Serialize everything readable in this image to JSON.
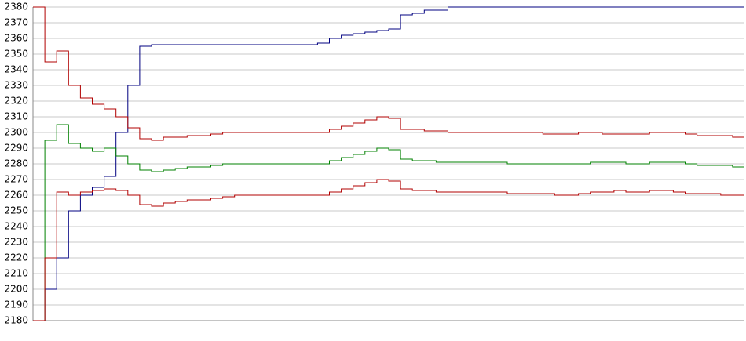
{
  "chart_data": {
    "type": "line",
    "categories": [
      null,
      null,
      null,
      null,
      null,
      null,
      null,
      null,
      null,
      null,
      null,
      null,
      null,
      null,
      null,
      null,
      null,
      null,
      null,
      null,
      null,
      null,
      null,
      null,
      null,
      null,
      null,
      null,
      null,
      null,
      null,
      null,
      null,
      null,
      null,
      null,
      null,
      null,
      null,
      null,
      null,
      null,
      null,
      null,
      null,
      null,
      null,
      null,
      null,
      null,
      null,
      null,
      null,
      null,
      null,
      null,
      null,
      null,
      null,
      null,
      null
    ],
    "ylim": [
      2180,
      2380
    ],
    "yticks": [
      2180,
      2190,
      2200,
      2210,
      2220,
      2230,
      2240,
      2250,
      2260,
      2270,
      2280,
      2290,
      2300,
      2310,
      2320,
      2330,
      2340,
      2350,
      2360,
      2370,
      2380
    ],
    "grid": true,
    "series": [
      {
        "color": "#000080",
        "values": [
          2180,
          2200,
          2220,
          2250,
          2260,
          2265,
          2272,
          2300,
          2330,
          2355,
          2356,
          2356,
          2356,
          2356,
          2356,
          2356,
          2356,
          2356,
          2356,
          2356,
          2356,
          2356,
          2356,
          2356,
          2357,
          2360,
          2362,
          2363,
          2364,
          2365,
          2366,
          2375,
          2376,
          2378,
          2378,
          2380,
          2380,
          2380,
          2380,
          2380,
          2380,
          2380,
          2380,
          2380,
          2380,
          2380,
          2380,
          2380,
          2380,
          2380,
          2380,
          2380,
          2380,
          2380,
          2380,
          2380,
          2380,
          2380,
          2380,
          2380,
          2380
        ]
      },
      {
        "color": "#b00000",
        "values": [
          2380,
          2345,
          2352,
          2330,
          2322,
          2318,
          2315,
          2310,
          2303,
          2296,
          2295,
          2297,
          2297,
          2298,
          2298,
          2299,
          2300,
          2300,
          2300,
          2300,
          2300,
          2300,
          2300,
          2300,
          2300,
          2302,
          2304,
          2306,
          2308,
          2310,
          2309,
          2302,
          2302,
          2301,
          2301,
          2300,
          2300,
          2300,
          2300,
          2300,
          2300,
          2300,
          2300,
          2299,
          2299,
          2299,
          2300,
          2300,
          2299,
          2299,
          2299,
          2299,
          2300,
          2300,
          2300,
          2299,
          2298,
          2298,
          2298,
          2297,
          2297
        ]
      },
      {
        "color": "#008000",
        "values": [
          2180,
          2295,
          2305,
          2293,
          2290,
          2288,
          2290,
          2285,
          2280,
          2276,
          2275,
          2276,
          2277,
          2278,
          2278,
          2279,
          2280,
          2280,
          2280,
          2280,
          2280,
          2280,
          2280,
          2280,
          2280,
          2282,
          2284,
          2286,
          2288,
          2290,
          2289,
          2283,
          2282,
          2282,
          2281,
          2281,
          2281,
          2281,
          2281,
          2281,
          2280,
          2280,
          2280,
          2280,
          2280,
          2280,
          2280,
          2281,
          2281,
          2281,
          2280,
          2280,
          2281,
          2281,
          2281,
          2280,
          2279,
          2279,
          2279,
          2278,
          2278
        ]
      },
      {
        "color": "#b00000",
        "values": [
          2180,
          2220,
          2262,
          2260,
          2262,
          2263,
          2264,
          2263,
          2260,
          2254,
          2253,
          2255,
          2256,
          2257,
          2257,
          2258,
          2259,
          2260,
          2260,
          2260,
          2260,
          2260,
          2260,
          2260,
          2260,
          2262,
          2264,
          2266,
          2268,
          2270,
          2269,
          2264,
          2263,
          2263,
          2262,
          2262,
          2262,
          2262,
          2262,
          2262,
          2261,
          2261,
          2261,
          2261,
          2260,
          2260,
          2261,
          2262,
          2262,
          2263,
          2262,
          2262,
          2263,
          2263,
          2262,
          2261,
          2261,
          2261,
          2260,
          2260,
          2260
        ]
      }
    ]
  }
}
